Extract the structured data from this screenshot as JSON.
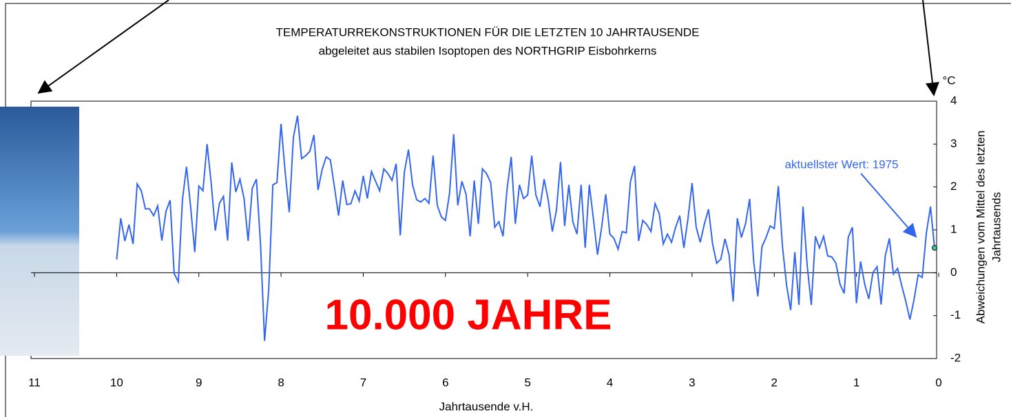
{
  "chart_data": {
    "type": "line",
    "title": "TEMPERATURREKONSTRUKTIONEN FÜR DIE LETZTEN 10 JAHRTAUSENDE",
    "subtitle": "abgeleitet aus stabilen Isoptopen des NORTHGRIP Eisbohrkerns",
    "x_label": "Jahrtausende v.H.",
    "y_label": [
      "Abweichungen vom Mittel des letzten",
      "Jahrtausends"
    ],
    "y_unit": "°C",
    "annotations": [
      "aktuellster Wert: 1975",
      "10.000 JAHRE"
    ],
    "color": "#3366ee",
    "xlim": [
      11,
      0
    ],
    "ylim": [
      -2,
      4
    ],
    "xticks": [
      0,
      1,
      2,
      3,
      4,
      5,
      6,
      7,
      8,
      9,
      10,
      11
    ],
    "yticks": [
      -2,
      -1,
      0,
      1,
      2,
      3,
      4
    ],
    "x": [
      10,
      9.95,
      9.9,
      9.85,
      9.8,
      9.75,
      9.7,
      9.65,
      9.6,
      9.55,
      9.5,
      9.45,
      9.4,
      9.35,
      9.3,
      9.25,
      9.2,
      9.15,
      9.1,
      9.05,
      9,
      8.95,
      8.9,
      8.85,
      8.8,
      8.75,
      8.7,
      8.65,
      8.6,
      8.55,
      8.5,
      8.45,
      8.4,
      8.35,
      8.3,
      8.25,
      8.2,
      8.15,
      8.1,
      8.05,
      8,
      7.95,
      7.9,
      7.85,
      7.8,
      7.75,
      7.7,
      7.65,
      7.6,
      7.55,
      7.5,
      7.45,
      7.4,
      7.35,
      7.3,
      7.25,
      7.2,
      7.15,
      7.1,
      7.05,
      7,
      6.95,
      6.9,
      6.85,
      6.8,
      6.75,
      6.7,
      6.65,
      6.6,
      6.55,
      6.5,
      6.45,
      6.4,
      6.35,
      6.3,
      6.25,
      6.2,
      6.15,
      6.1,
      6.05,
      6,
      5.95,
      5.9,
      5.85,
      5.8,
      5.75,
      5.7,
      5.65,
      5.6,
      5.55,
      5.5,
      5.45,
      5.4,
      5.35,
      5.3,
      5.25,
      5.2,
      5.15,
      5.1,
      5.05,
      5,
      4.95,
      4.9,
      4.85,
      4.8,
      4.75,
      4.7,
      4.65,
      4.6,
      4.55,
      4.5,
      4.45,
      4.4,
      4.35,
      4.3,
      4.25,
      4.2,
      4.15,
      4.1,
      4.05,
      4,
      3.95,
      3.9,
      3.85,
      3.8,
      3.75,
      3.7,
      3.65,
      3.6,
      3.55,
      3.5,
      3.45,
      3.4,
      3.35,
      3.3,
      3.25,
      3.2,
      3.15,
      3.1,
      3.05,
      3,
      2.95,
      2.9,
      2.85,
      2.8,
      2.75,
      2.7,
      2.65,
      2.6,
      2.55,
      2.5,
      2.45,
      2.4,
      2.35,
      2.3,
      2.25,
      2.2,
      2.15,
      2.1,
      2.05,
      2,
      1.95,
      1.9,
      1.85,
      1.8,
      1.75,
      1.7,
      1.65,
      1.6,
      1.55,
      1.5,
      1.45,
      1.4,
      1.35,
      1.3,
      1.25,
      1.2,
      1.15,
      1.1,
      1.05,
      1,
      0.95,
      0.9,
      0.85,
      0.8,
      0.75,
      0.7,
      0.65,
      0.6,
      0.55,
      0.5,
      0.45,
      0.4,
      0.35,
      0.3,
      0.25,
      0.2,
      0.15,
      0.1,
      0.05
    ],
    "values": [
      0.31,
      1.27,
      0.74,
      1.12,
      0.67,
      2.07,
      1.91,
      1.49,
      1.49,
      1.33,
      1.56,
      0.75,
      1.43,
      1.69,
      -0.02,
      -0.21,
      1.7,
      2.47,
      1.54,
      0.48,
      2.02,
      1.91,
      3.0,
      2.1,
      0.98,
      1.62,
      1.78,
      0.75,
      2.57,
      1.88,
      2.18,
      1.73,
      0.74,
      1.97,
      2.18,
      0.66,
      -1.59,
      -0.39,
      2.05,
      2.1,
      3.47,
      2.34,
      1.41,
      3.15,
      3.66,
      2.66,
      2.73,
      2.83,
      3.21,
      1.93,
      2.41,
      2.7,
      2.63,
      1.99,
      1.33,
      2.15,
      1.59,
      1.61,
      1.91,
      1.67,
      2.26,
      1.73,
      2.36,
      2.13,
      1.91,
      2.42,
      2.31,
      2.15,
      2.54,
      0.87,
      2.34,
      2.87,
      2.05,
      1.7,
      1.65,
      1.73,
      1.62,
      2.73,
      1.57,
      1.3,
      1.22,
      1.86,
      3.23,
      1.57,
      2.13,
      1.83,
      0.85,
      2.15,
      1.14,
      2.42,
      2.31,
      2.1,
      1.06,
      1.19,
      0.85,
      1.96,
      2.7,
      1.14,
      2.05,
      1.73,
      1.81,
      2.73,
      1.81,
      1.54,
      2.18,
      1.7,
      0.96,
      1.46,
      2.58,
      1.09,
      2.05,
      1.19,
      0.9,
      2.05,
      0.58,
      2.05,
      1.25,
      0.42,
      1.06,
      1.83,
      0.9,
      0.8,
      0.55,
      0.96,
      0.93,
      2.12,
      2.49,
      0.74,
      1.22,
      1.12,
      0.96,
      1.61,
      1.38,
      0.67,
      0.9,
      0.71,
      1.06,
      1.33,
      0.58,
      1.25,
      2.09,
      1.06,
      0.71,
      1.14,
      1.48,
      0.66,
      0.22,
      0.32,
      0.79,
      0.42,
      -0.67,
      1.27,
      0.82,
      1.14,
      1.72,
      0.26,
      -0.55,
      0.61,
      0.82,
      1.09,
      1.03,
      2.02,
      0.61,
      -0.3,
      -0.87,
      0.48,
      -0.75,
      1.54,
      0.18,
      -0.75,
      0.85,
      0.58,
      0.85,
      0.39,
      0.37,
      0.22,
      -0.27,
      -0.48,
      0.83,
      1.06,
      -0.71,
      0.26,
      -0.27,
      -0.61,
      0,
      0.14,
      -0.74,
      0.39,
      0.8,
      -0.03,
      0.1,
      -0.3,
      -0.67,
      -1.09,
      -0.63,
      -0.05,
      -0.11,
      0.93,
      1.54,
      0.58
    ]
  }
}
